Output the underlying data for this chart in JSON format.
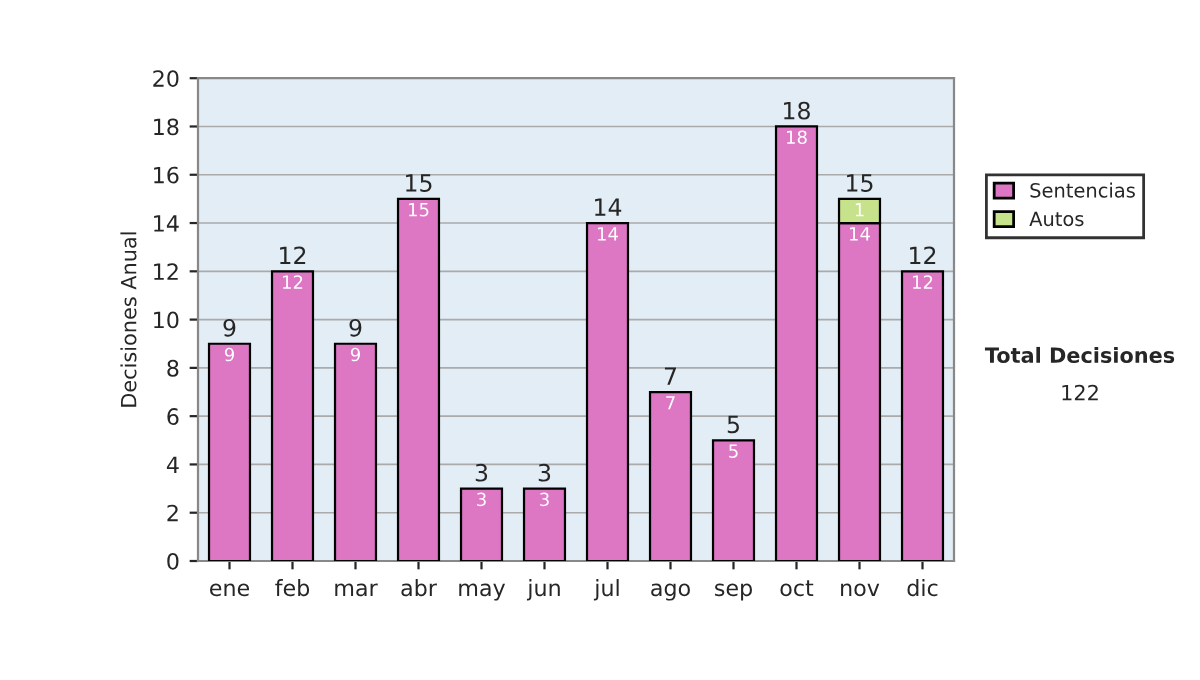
{
  "chart_data": {
    "type": "bar",
    "stacked": true,
    "ylabel": "Decisiones Anual",
    "categories": [
      "ene",
      "feb",
      "mar",
      "abr",
      "may",
      "jun",
      "jul",
      "ago",
      "sep",
      "oct",
      "nov",
      "dic"
    ],
    "series": [
      {
        "name": "Sentencias",
        "color": "#dd77c4",
        "values": [
          9,
          12,
          9,
          15,
          3,
          3,
          14,
          7,
          5,
          18,
          14,
          12
        ]
      },
      {
        "name": "Autos",
        "color": "#c6e28a",
        "values": [
          null,
          null,
          null,
          null,
          null,
          null,
          null,
          null,
          null,
          null,
          1,
          null
        ]
      }
    ],
    "totals": [
      "9",
      "12",
      "9",
      "15",
      "3",
      "3",
      "14",
      "7",
      "5",
      "18",
      "15",
      "12"
    ],
    "data_labels": true,
    "ylim": [
      0,
      20
    ],
    "yticks": [
      0,
      2,
      4,
      6,
      8,
      10,
      12,
      14,
      16,
      18,
      20
    ],
    "grid": "y",
    "legend": "right",
    "annotations": [
      "Total Decisiones",
      "122"
    ]
  }
}
